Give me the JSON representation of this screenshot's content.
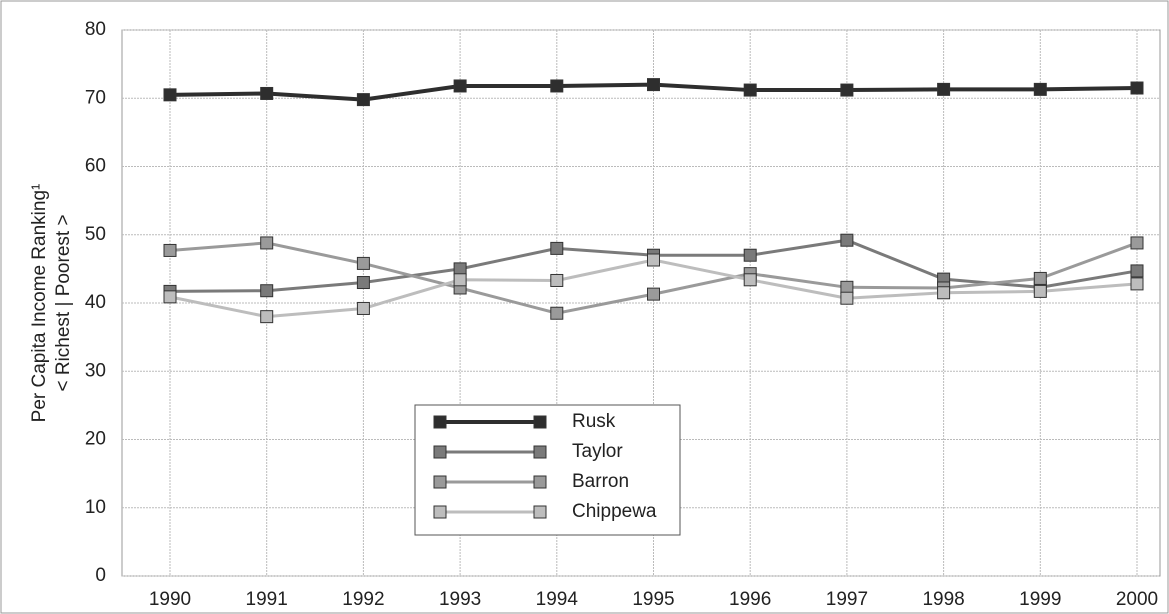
{
  "chart_data": {
    "type": "line",
    "y_label": [
      "Per Capita Income Ranking¹",
      "< Richest | Poorest >"
    ],
    "categories": [
      "1990",
      "1991",
      "1992",
      "1993",
      "1994",
      "1995",
      "1996",
      "1997",
      "1998",
      "1999",
      "2000"
    ],
    "series": [
      {
        "name": "Rusk",
        "color": "#2e2e2e",
        "values": [
          70.5,
          70.7,
          69.8,
          71.8,
          71.8,
          72,
          71.2,
          71.2,
          71.3,
          71.3,
          71.5
        ]
      },
      {
        "name": "Taylor",
        "color": "#7a7a7a",
        "values": [
          41.7,
          41.8,
          43,
          45,
          48,
          47,
          47,
          49.2,
          43.5,
          42.3,
          44.7
        ]
      },
      {
        "name": "Barron",
        "color": "#9a9a9a",
        "values": [
          47.7,
          48.8,
          45.8,
          42.2,
          38.5,
          41.3,
          44.3,
          42.3,
          42.2,
          43.6,
          48.8
        ]
      },
      {
        "name": "Chippewa",
        "color": "#bdbdbd",
        "values": [
          40.9,
          38,
          39.2,
          43.4,
          43.3,
          46.3,
          43.4,
          40.7,
          41.5,
          41.7,
          42.8
        ]
      }
    ],
    "ylim": [
      0,
      80
    ],
    "yticks": [
      0,
      10,
      20,
      30,
      40,
      50,
      60,
      70,
      80
    ],
    "grid": true
  }
}
